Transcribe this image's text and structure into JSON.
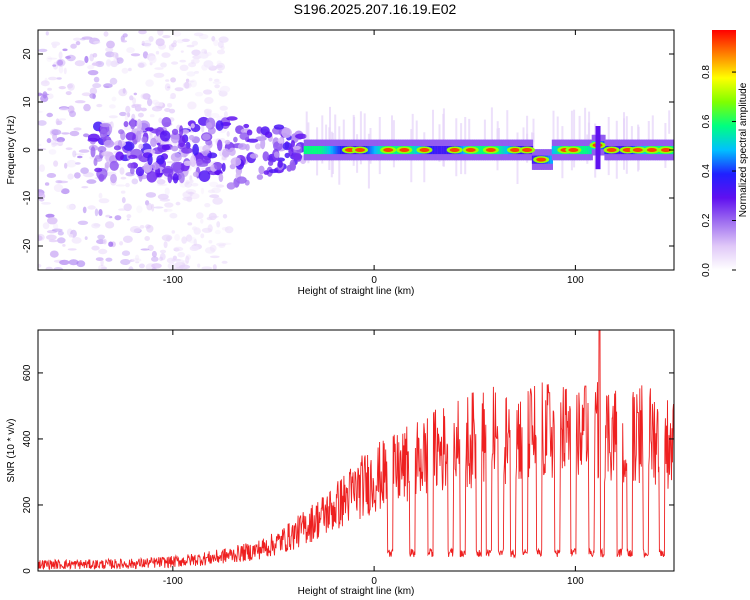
{
  "title": "S196.2025.207.16.19.E02",
  "chart_data": [
    {
      "type": "heatmap",
      "xlabel": "Height of straight line (km)",
      "ylabel": "Frequency (Hz)",
      "colorbar_label": "Normalized spectral amplitude",
      "xlim": [
        -167,
        149
      ],
      "ylim": [
        -25,
        25
      ],
      "x_ticks": [
        -100,
        0,
        100
      ],
      "y_ticks": [
        -20,
        -10,
        0,
        10,
        20
      ],
      "colorbar_ticks": [
        0.0,
        0.2,
        0.4,
        0.6,
        0.8
      ],
      "colorbar_range": [
        0,
        0.97
      ],
      "colormap": [
        "#ffffff",
        "#e0c8f8",
        "#a070f0",
        "#6010f0",
        "#2020ff",
        "#00c0ff",
        "#00ff80",
        "#80ff00",
        "#ffff00",
        "#ff8000",
        "#ff0000"
      ],
      "regions": [
        {
          "x": [
            -167,
            -72
          ],
          "freq_spread": 25,
          "amplitude": [
            0.03,
            0.2
          ],
          "note": "diffuse noise"
        },
        {
          "x": [
            -72,
            -35
          ],
          "freq_spread": 8,
          "amplitude": [
            0.1,
            0.35
          ]
        },
        {
          "x": [
            -35,
            149
          ],
          "freq_center": 0,
          "freq_width": 1.2,
          "amplitude": [
            0.3,
            0.95
          ]
        }
      ],
      "hot_spots_x": [
        -12,
        -7,
        7,
        15,
        25,
        40,
        48,
        58,
        70,
        76,
        83,
        95,
        99,
        111,
        118,
        126,
        131,
        138,
        145
      ]
    },
    {
      "type": "line",
      "xlabel": "Height of straight line (km)",
      "ylabel": "SNR (10 * v/v)",
      "xlim": [
        -167,
        149
      ],
      "ylim": [
        0,
        730
      ],
      "x_ticks": [
        -100,
        0,
        100
      ],
      "y_ticks": [
        0,
        200,
        400,
        600
      ],
      "color": "#ee2020",
      "envelope": {
        "x": [
          -167,
          -140,
          -120,
          -100,
          -80,
          -60,
          -50,
          -40,
          -30,
          -20,
          -10,
          0,
          10,
          20,
          30,
          40,
          50,
          60,
          70,
          80,
          90,
          100,
          110,
          120,
          130,
          140,
          149
        ],
        "y": [
          20,
          20,
          22,
          28,
          40,
          60,
          80,
          110,
          150,
          190,
          240,
          280,
          300,
          330,
          360,
          380,
          400,
          410,
          410,
          420,
          420,
          420,
          420,
          420,
          420,
          410,
          380
        ]
      },
      "dips_x": [
        8,
        19,
        28,
        38,
        44,
        52,
        57,
        63,
        69,
        75,
        82,
        91,
        99,
        108,
        113,
        122,
        127,
        135,
        143
      ],
      "dip_level": 55,
      "peaks": [
        {
          "x": 112,
          "y": 730
        },
        {
          "x": 87,
          "y": 540
        },
        {
          "x": 105,
          "y": 560
        },
        {
          "x": 131,
          "y": 480
        }
      ]
    }
  ]
}
